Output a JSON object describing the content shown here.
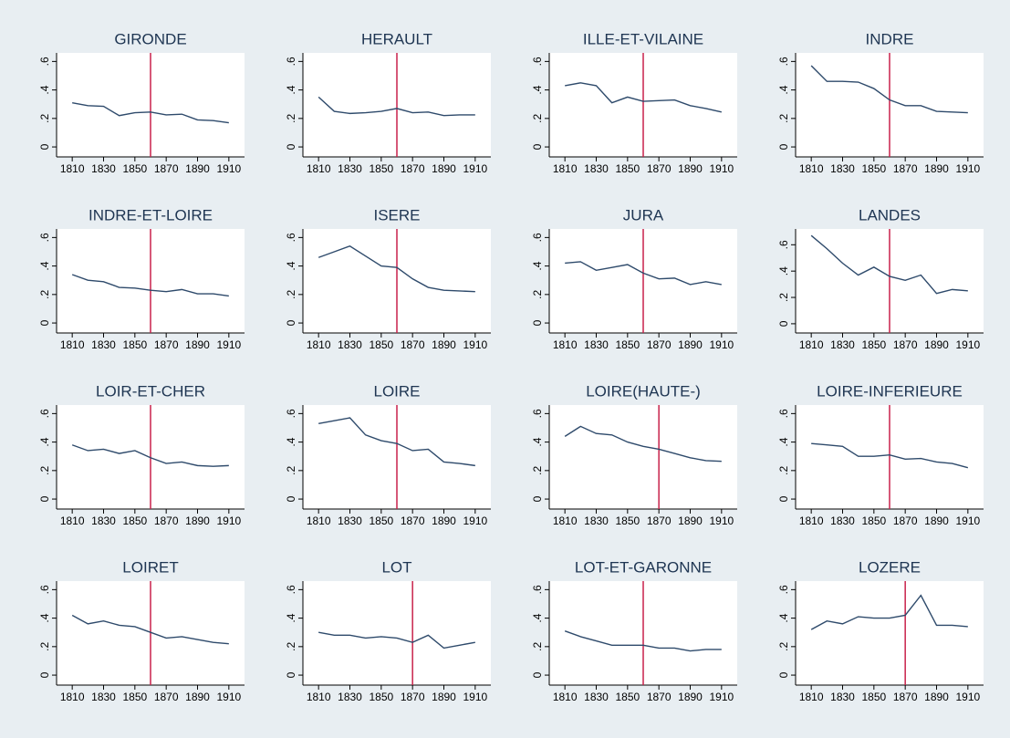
{
  "chart_data": [
    {
      "type": "line",
      "title": "GIRONDE",
      "x": [
        1810,
        1820,
        1830,
        1840,
        1850,
        1860,
        1870,
        1880,
        1890,
        1900,
        1910
      ],
      "values": [
        0.31,
        0.29,
        0.285,
        0.22,
        0.24,
        0.245,
        0.225,
        0.23,
        0.19,
        0.185,
        0.17
      ],
      "vline": 1860,
      "color": "#2e4a6b",
      "vline_color": "#c8214a",
      "xlim": [
        1800,
        1920
      ],
      "ylim": [
        -0.07,
        0.66
      ],
      "xticks": [
        1810,
        1830,
        1850,
        1870,
        1890,
        1910
      ],
      "yticks": [
        0,
        {
          "value": 0.2,
          "label": ".2"
        },
        {
          "value": 0.4,
          "label": ".4"
        },
        {
          "value": 0.6,
          "label": ".6"
        }
      ]
    },
    {
      "type": "line",
      "title": "HERAULT",
      "x": [
        1810,
        1820,
        1830,
        1840,
        1850,
        1860,
        1870,
        1880,
        1890,
        1900,
        1910
      ],
      "values": [
        0.35,
        0.25,
        0.235,
        0.24,
        0.25,
        0.27,
        0.24,
        0.245,
        0.22,
        0.225,
        0.225
      ],
      "vline": 1860,
      "color": "#2e4a6b",
      "vline_color": "#c8214a",
      "xlim": [
        1800,
        1920
      ],
      "ylim": [
        -0.07,
        0.66
      ],
      "xticks": [
        1810,
        1830,
        1850,
        1870,
        1890,
        1910
      ],
      "yticks": [
        0,
        {
          "value": 0.2,
          "label": ".2"
        },
        {
          "value": 0.4,
          "label": ".4"
        },
        {
          "value": 0.6,
          "label": ".6"
        }
      ]
    },
    {
      "type": "line",
      "title": "ILLE-ET-VILAINE",
      "x": [
        1810,
        1820,
        1830,
        1840,
        1850,
        1860,
        1870,
        1880,
        1890,
        1900,
        1910
      ],
      "values": [
        0.43,
        0.45,
        0.43,
        0.31,
        0.35,
        0.32,
        0.325,
        0.33,
        0.29,
        0.27,
        0.245
      ],
      "vline": 1860,
      "color": "#2e4a6b",
      "vline_color": "#c8214a",
      "xlim": [
        1800,
        1920
      ],
      "ylim": [
        -0.07,
        0.66
      ],
      "xticks": [
        1810,
        1830,
        1850,
        1870,
        1890,
        1910
      ],
      "yticks": [
        0,
        {
          "value": 0.2,
          "label": ".2"
        },
        {
          "value": 0.4,
          "label": ".4"
        },
        {
          "value": 0.6,
          "label": ".6"
        }
      ]
    },
    {
      "type": "line",
      "title": "INDRE",
      "x": [
        1810,
        1820,
        1830,
        1840,
        1850,
        1860,
        1870,
        1880,
        1890,
        1900,
        1910
      ],
      "values": [
        0.57,
        0.46,
        0.46,
        0.455,
        0.41,
        0.33,
        0.29,
        0.29,
        0.25,
        0.245,
        0.24
      ],
      "vline": 1860,
      "color": "#2e4a6b",
      "vline_color": "#c8214a",
      "xlim": [
        1800,
        1920
      ],
      "ylim": [
        -0.07,
        0.66
      ],
      "xticks": [
        1810,
        1830,
        1850,
        1870,
        1890,
        1910
      ],
      "yticks": [
        0,
        {
          "value": 0.2,
          "label": ".2"
        },
        {
          "value": 0.4,
          "label": ".4"
        },
        {
          "value": 0.6,
          "label": ".6"
        }
      ]
    },
    {
      "type": "line",
      "title": "INDRE-ET-LOIRE",
      "x": [
        1810,
        1820,
        1830,
        1840,
        1850,
        1860,
        1870,
        1880,
        1890,
        1900,
        1910
      ],
      "values": [
        0.34,
        0.3,
        0.29,
        0.25,
        0.245,
        0.23,
        0.22,
        0.235,
        0.205,
        0.205,
        0.19
      ],
      "vline": 1860,
      "color": "#2e4a6b",
      "vline_color": "#c8214a",
      "xlim": [
        1800,
        1920
      ],
      "ylim": [
        -0.07,
        0.66
      ],
      "xticks": [
        1810,
        1830,
        1850,
        1870,
        1890,
        1910
      ],
      "yticks": [
        0,
        {
          "value": 0.2,
          "label": ".2"
        },
        {
          "value": 0.4,
          "label": ".4"
        },
        {
          "value": 0.6,
          "label": ".6"
        }
      ]
    },
    {
      "type": "line",
      "title": "ISERE",
      "x": [
        1810,
        1820,
        1830,
        1840,
        1850,
        1860,
        1870,
        1880,
        1890,
        1900,
        1910
      ],
      "values": [
        0.46,
        0.5,
        0.54,
        0.47,
        0.4,
        0.39,
        0.31,
        0.25,
        0.23,
        0.225,
        0.22
      ],
      "vline": 1860,
      "color": "#2e4a6b",
      "vline_color": "#c8214a",
      "xlim": [
        1800,
        1920
      ],
      "ylim": [
        -0.07,
        0.66
      ],
      "xticks": [
        1810,
        1830,
        1850,
        1870,
        1890,
        1910
      ],
      "yticks": [
        0,
        {
          "value": 0.2,
          "label": ".2"
        },
        {
          "value": 0.4,
          "label": ".4"
        },
        {
          "value": 0.6,
          "label": ".6"
        }
      ]
    },
    {
      "type": "line",
      "title": "JURA",
      "x": [
        1810,
        1820,
        1830,
        1840,
        1850,
        1860,
        1870,
        1880,
        1890,
        1900,
        1910
      ],
      "values": [
        0.42,
        0.43,
        0.37,
        0.39,
        0.41,
        0.35,
        0.31,
        0.315,
        0.27,
        0.29,
        0.27
      ],
      "vline": 1860,
      "color": "#2e4a6b",
      "vline_color": "#c8214a",
      "xlim": [
        1800,
        1920
      ],
      "ylim": [
        -0.07,
        0.66
      ],
      "xticks": [
        1810,
        1830,
        1850,
        1870,
        1890,
        1910
      ],
      "yticks": [
        0,
        {
          "value": 0.2,
          "label": ".2"
        },
        {
          "value": 0.4,
          "label": ".4"
        },
        {
          "value": 0.6,
          "label": ".6"
        }
      ]
    },
    {
      "type": "line",
      "title": "LANDES",
      "x": [
        1810,
        1820,
        1830,
        1840,
        1850,
        1860,
        1870,
        1880,
        1890,
        1900,
        1910
      ],
      "values": [
        0.67,
        0.57,
        0.46,
        0.37,
        0.43,
        0.36,
        0.33,
        0.37,
        0.23,
        0.26,
        0.25
      ],
      "vline": 1860,
      "color": "#2e4a6b",
      "vline_color": "#c8214a",
      "xlim": [
        1800,
        1920
      ],
      "ylim": [
        -0.07,
        0.72
      ],
      "xticks": [
        1810,
        1830,
        1850,
        1870,
        1890,
        1910
      ],
      "yticks": [
        0,
        {
          "value": 0.2,
          "label": ".2"
        },
        {
          "value": 0.4,
          "label": ".4"
        },
        {
          "value": 0.6,
          "label": ".6"
        }
      ]
    },
    {
      "type": "line",
      "title": "LOIR-ET-CHER",
      "x": [
        1810,
        1820,
        1830,
        1840,
        1850,
        1860,
        1870,
        1880,
        1890,
        1900,
        1910
      ],
      "values": [
        0.38,
        0.34,
        0.35,
        0.32,
        0.34,
        0.29,
        0.25,
        0.26,
        0.235,
        0.23,
        0.235
      ],
      "vline": 1860,
      "color": "#2e4a6b",
      "vline_color": "#c8214a",
      "xlim": [
        1800,
        1920
      ],
      "ylim": [
        -0.07,
        0.66
      ],
      "xticks": [
        1810,
        1830,
        1850,
        1870,
        1890,
        1910
      ],
      "yticks": [
        0,
        {
          "value": 0.2,
          "label": ".2"
        },
        {
          "value": 0.4,
          "label": ".4"
        },
        {
          "value": 0.6,
          "label": ".6"
        }
      ]
    },
    {
      "type": "line",
      "title": "LOIRE",
      "x": [
        1810,
        1820,
        1830,
        1840,
        1850,
        1860,
        1870,
        1880,
        1890,
        1900,
        1910
      ],
      "values": [
        0.53,
        0.55,
        0.57,
        0.45,
        0.41,
        0.39,
        0.34,
        0.35,
        0.26,
        0.25,
        0.235
      ],
      "vline": 1860,
      "color": "#2e4a6b",
      "vline_color": "#c8214a",
      "xlim": [
        1800,
        1920
      ],
      "ylim": [
        -0.07,
        0.66
      ],
      "xticks": [
        1810,
        1830,
        1850,
        1870,
        1890,
        1910
      ],
      "yticks": [
        0,
        {
          "value": 0.2,
          "label": ".2"
        },
        {
          "value": 0.4,
          "label": ".4"
        },
        {
          "value": 0.6,
          "label": ".6"
        }
      ]
    },
    {
      "type": "line",
      "title": "LOIRE(HAUTE-)",
      "x": [
        1810,
        1820,
        1830,
        1840,
        1850,
        1860,
        1870,
        1880,
        1890,
        1900,
        1910
      ],
      "values": [
        0.44,
        0.51,
        0.46,
        0.45,
        0.4,
        0.37,
        0.35,
        0.32,
        0.29,
        0.27,
        0.265
      ],
      "vline": 1870,
      "color": "#2e4a6b",
      "vline_color": "#c8214a",
      "xlim": [
        1800,
        1920
      ],
      "ylim": [
        -0.07,
        0.66
      ],
      "xticks": [
        1810,
        1830,
        1850,
        1870,
        1890,
        1910
      ],
      "yticks": [
        0,
        {
          "value": 0.2,
          "label": ".2"
        },
        {
          "value": 0.4,
          "label": ".4"
        },
        {
          "value": 0.6,
          "label": ".6"
        }
      ]
    },
    {
      "type": "line",
      "title": "LOIRE-INFERIEURE",
      "x": [
        1810,
        1820,
        1830,
        1840,
        1850,
        1860,
        1870,
        1880,
        1890,
        1900,
        1910
      ],
      "values": [
        0.39,
        0.38,
        0.37,
        0.3,
        0.3,
        0.31,
        0.28,
        0.285,
        0.26,
        0.25,
        0.22
      ],
      "vline": 1860,
      "color": "#2e4a6b",
      "vline_color": "#c8214a",
      "xlim": [
        1800,
        1920
      ],
      "ylim": [
        -0.07,
        0.66
      ],
      "xticks": [
        1810,
        1830,
        1850,
        1870,
        1890,
        1910
      ],
      "yticks": [
        0,
        {
          "value": 0.2,
          "label": ".2"
        },
        {
          "value": 0.4,
          "label": ".4"
        },
        {
          "value": 0.6,
          "label": ".6"
        }
      ]
    },
    {
      "type": "line",
      "title": "LOIRET",
      "x": [
        1810,
        1820,
        1830,
        1840,
        1850,
        1860,
        1870,
        1880,
        1890,
        1900,
        1910
      ],
      "values": [
        0.42,
        0.36,
        0.38,
        0.35,
        0.34,
        0.3,
        0.26,
        0.27,
        0.25,
        0.23,
        0.22
      ],
      "vline": 1860,
      "color": "#2e4a6b",
      "vline_color": "#c8214a",
      "xlim": [
        1800,
        1920
      ],
      "ylim": [
        -0.07,
        0.66
      ],
      "xticks": [
        1810,
        1830,
        1850,
        1870,
        1890,
        1910
      ],
      "yticks": [
        0,
        {
          "value": 0.2,
          "label": ".2"
        },
        {
          "value": 0.4,
          "label": ".4"
        },
        {
          "value": 0.6,
          "label": ".6"
        }
      ]
    },
    {
      "type": "line",
      "title": "LOT",
      "x": [
        1810,
        1820,
        1830,
        1840,
        1850,
        1860,
        1870,
        1880,
        1890,
        1900,
        1910
      ],
      "values": [
        0.3,
        0.28,
        0.28,
        0.26,
        0.27,
        0.26,
        0.23,
        0.28,
        0.19,
        0.21,
        0.23
      ],
      "vline": 1870,
      "color": "#2e4a6b",
      "vline_color": "#c8214a",
      "xlim": [
        1800,
        1920
      ],
      "ylim": [
        -0.07,
        0.66
      ],
      "xticks": [
        1810,
        1830,
        1850,
        1870,
        1890,
        1910
      ],
      "yticks": [
        0,
        {
          "value": 0.2,
          "label": ".2"
        },
        {
          "value": 0.4,
          "label": ".4"
        },
        {
          "value": 0.6,
          "label": ".6"
        }
      ]
    },
    {
      "type": "line",
      "title": "LOT-ET-GARONNE",
      "x": [
        1810,
        1820,
        1830,
        1840,
        1850,
        1860,
        1870,
        1880,
        1890,
        1900,
        1910
      ],
      "values": [
        0.31,
        0.27,
        0.24,
        0.21,
        0.21,
        0.21,
        0.19,
        0.19,
        0.17,
        0.18,
        0.18
      ],
      "vline": 1860,
      "color": "#2e4a6b",
      "vline_color": "#c8214a",
      "xlim": [
        1800,
        1920
      ],
      "ylim": [
        -0.07,
        0.66
      ],
      "xticks": [
        1810,
        1830,
        1850,
        1870,
        1890,
        1910
      ],
      "yticks": [
        0,
        {
          "value": 0.2,
          "label": ".2"
        },
        {
          "value": 0.4,
          "label": ".4"
        },
        {
          "value": 0.6,
          "label": ".6"
        }
      ]
    },
    {
      "type": "line",
      "title": "LOZERE",
      "x": [
        1810,
        1820,
        1830,
        1840,
        1850,
        1860,
        1870,
        1880,
        1890,
        1900,
        1910
      ],
      "values": [
        0.32,
        0.38,
        0.36,
        0.41,
        0.4,
        0.4,
        0.42,
        0.56,
        0.35,
        0.35,
        0.34
      ],
      "vline": 1870,
      "color": "#2e4a6b",
      "vline_color": "#c8214a",
      "xlim": [
        1800,
        1920
      ],
      "ylim": [
        -0.07,
        0.66
      ],
      "xticks": [
        1810,
        1830,
        1850,
        1870,
        1890,
        1910
      ],
      "yticks": [
        0,
        {
          "value": 0.2,
          "label": ".2"
        },
        {
          "value": 0.4,
          "label": ".4"
        },
        {
          "value": 0.6,
          "label": ".6"
        }
      ]
    }
  ]
}
